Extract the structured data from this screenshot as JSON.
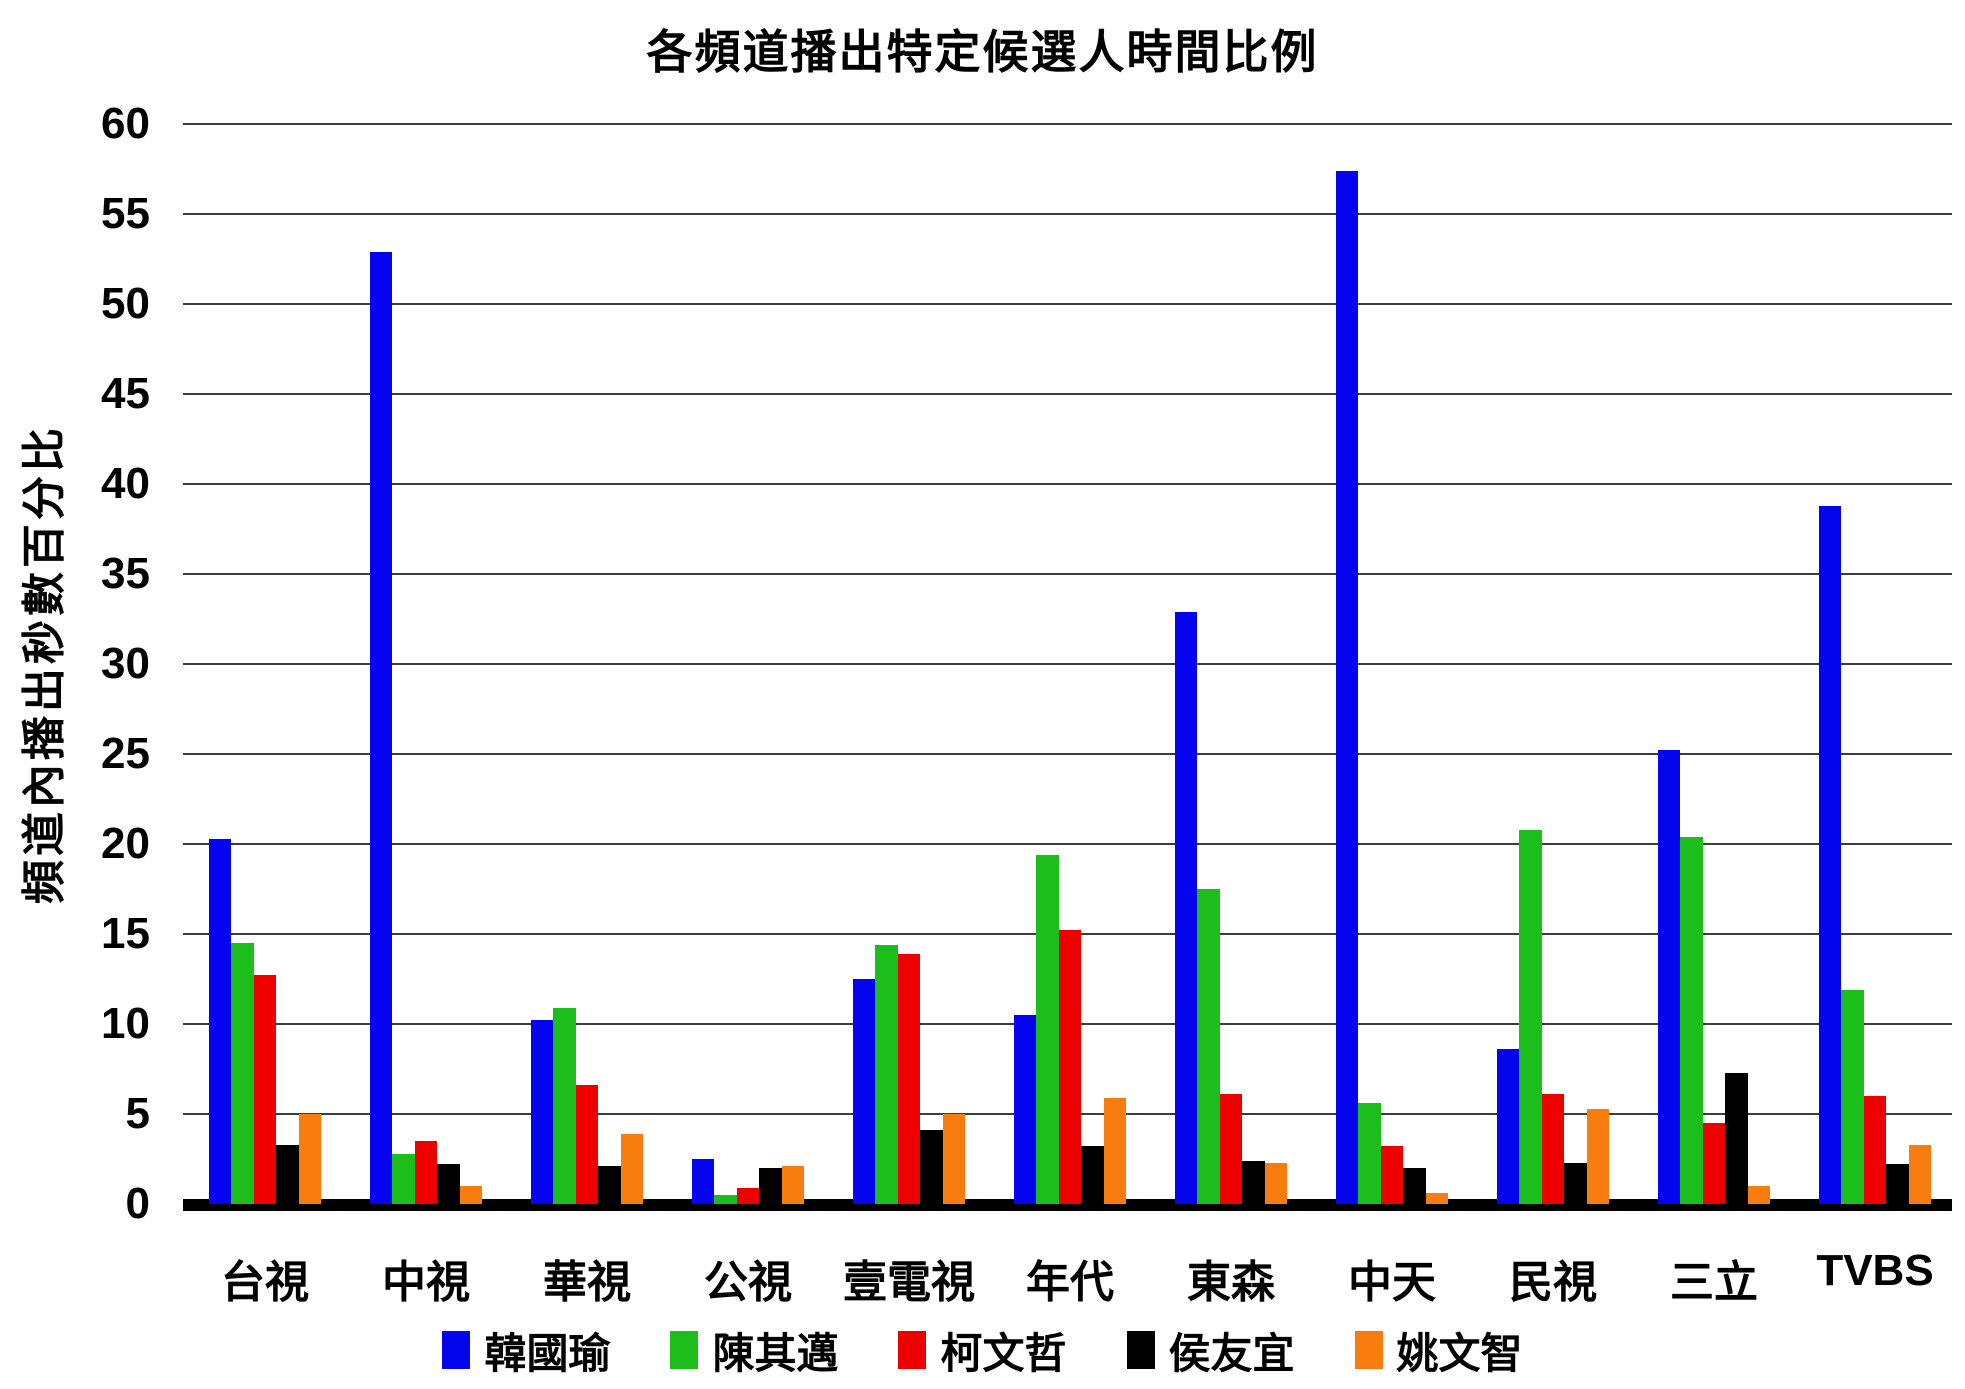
{
  "title": "各頻道播出特定候選人時間比例",
  "chart_data": {
    "type": "bar",
    "title": "各頻道播出特定候選人時間比例",
    "ylabel": "頻道內播出秒數百分比",
    "xlabel": "",
    "ylim": [
      0,
      60
    ],
    "ytick_step": 5,
    "grid": "horizontal",
    "legend_position": "bottom",
    "categories": [
      "台視",
      "中視",
      "華視",
      "公視",
      "壹電視",
      "年代",
      "東森",
      "中天",
      "民視",
      "三立",
      "TVBS"
    ],
    "series": [
      {
        "name": "韓國瑜",
        "color": "#0404EE",
        "values": [
          20.3,
          52.9,
          10.2,
          2.5,
          12.5,
          10.5,
          32.9,
          57.4,
          8.6,
          25.2,
          38.8
        ]
      },
      {
        "name": "陳其邁",
        "color": "#1CBE1C",
        "values": [
          14.5,
          2.8,
          10.9,
          0.5,
          14.4,
          19.4,
          17.5,
          5.6,
          20.8,
          20.4,
          11.9
        ]
      },
      {
        "name": "柯文哲",
        "color": "#EE0000",
        "values": [
          12.7,
          3.5,
          6.6,
          0.9,
          13.9,
          15.2,
          6.1,
          3.2,
          6.1,
          4.5,
          6.0
        ]
      },
      {
        "name": "侯友宜",
        "color": "#000000",
        "values": [
          3.3,
          2.2,
          2.1,
          2.0,
          4.1,
          3.2,
          2.4,
          2.0,
          2.3,
          7.3,
          2.2
        ]
      },
      {
        "name": "姚文智",
        "color": "#F97D0E",
        "values": [
          5.0,
          1.0,
          3.9,
          2.1,
          5.0,
          5.9,
          2.3,
          0.6,
          5.3,
          1.0,
          3.3
        ]
      }
    ]
  }
}
